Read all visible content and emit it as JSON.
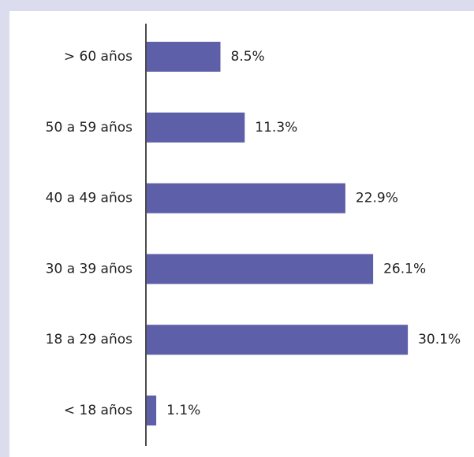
{
  "chart_data": {
    "type": "bar",
    "orientation": "horizontal",
    "categories": [
      "> 60 años",
      "50 a 59 años",
      "40 a 49 años",
      "30 a 39 años",
      "18 a 29 años",
      "< 18 años"
    ],
    "values": [
      8.5,
      11.3,
      22.9,
      26.1,
      30.1,
      1.1
    ],
    "value_labels": [
      "8.5%",
      "11.3%",
      "22.9%",
      "26.1%",
      "30.1%",
      "1.1%"
    ],
    "color": "#5d5fa9"
  }
}
